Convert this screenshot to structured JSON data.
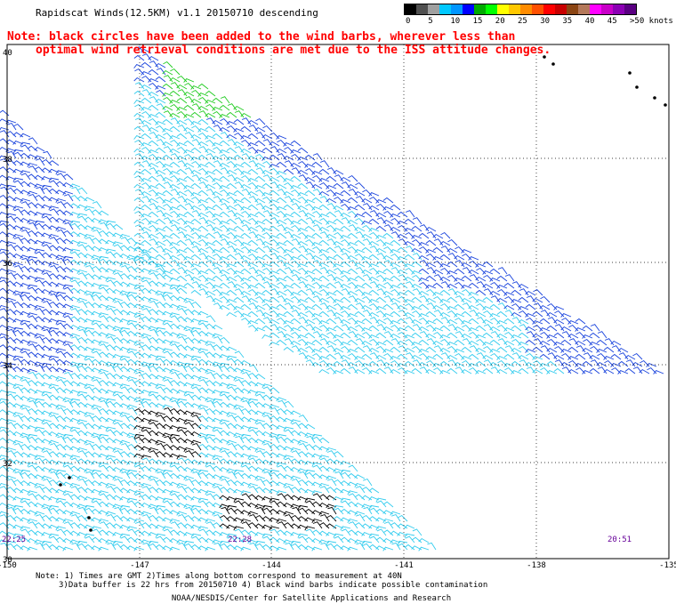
{
  "title": "Rapidscat Winds(12.5KM) v1.1 20150710 descending",
  "notes": [
    "Note: black circles have been added to the wind barbs, wherever less than",
    "optimal wind retrieval conditions are met due to the ISS attitude changes."
  ],
  "legend": {
    "labels": [
      "0",
      "5",
      "10",
      "15",
      "20",
      "25",
      "30",
      "35",
      "40",
      "45",
      ">50 knots"
    ],
    "colors": [
      "#000000",
      "#505050",
      "#a0a0a0",
      "#00c8ff",
      "#0096ff",
      "#0000ff",
      "#00aa00",
      "#00ff00",
      "#ffff00",
      "#ffc800",
      "#ff8c00",
      "#ff5000",
      "#ff0000",
      "#c80000",
      "#8b4513",
      "#b4785a",
      "#ff00ff",
      "#c800c8",
      "#8c00b4",
      "#5a0082"
    ]
  },
  "lat_labels": [
    "40",
    "38",
    "36",
    "34",
    "32",
    "30"
  ],
  "lon_labels": [
    "-150",
    "-147",
    "-144",
    "-141",
    "-138",
    "-135"
  ],
  "time_labels": [
    "22:25",
    "22:28",
    "20:51"
  ],
  "footer": {
    "line1": "Note: 1) Times are GMT 2)Times along bottom correspond to measurement at 40N",
    "line2": "3)Data buffer is 22 hrs from 20150710 4) Black wind barbs indicate possible contamination",
    "line3": "NOAA/NESDIS/Center for Satellite Applications and Research"
  },
  "colors": {
    "cyan": "#33ccee",
    "blue": "#1a44dd",
    "green": "#22cc22",
    "black": "#000000",
    "time": "#660099"
  }
}
